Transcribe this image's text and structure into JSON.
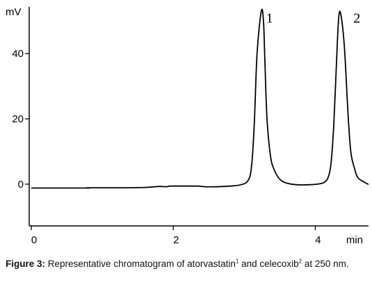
{
  "chart_data": {
    "type": "line",
    "y_unit": "mV",
    "x_unit": "min",
    "xlim": [
      -0.03,
      4.75
    ],
    "ylim": [
      -12.8,
      54.3
    ],
    "x_ticks": [
      0,
      2,
      4
    ],
    "x_tick_labels": [
      "0",
      "2",
      "4"
    ],
    "y_ticks": [
      0,
      20,
      40
    ],
    "y_tick_labels": [
      "0",
      "20",
      "40"
    ],
    "grid": false,
    "peak_labels": [
      {
        "text": "1",
        "x": 3.16,
        "y": 52.5
      },
      {
        "text": "2",
        "x": 4.39,
        "y": 52.5
      }
    ],
    "series": [
      {
        "x": [
          0,
          0.3,
          0.6,
          0.8,
          0.8,
          0.82,
          1.3,
          1.6,
          1.8,
          1.9,
          1.95,
          2.0,
          2.2,
          2.3,
          2.35,
          2.45,
          2.6,
          2.8,
          2.95,
          3.05,
          3.1,
          3.14,
          3.18,
          3.24,
          3.27,
          3.29,
          3.32,
          3.37,
          3.42,
          3.5,
          3.6,
          3.75,
          3.9,
          4.03,
          4.1,
          4.14,
          4.18,
          4.22,
          4.26,
          4.3,
          4.33,
          4.36,
          4.41,
          4.46,
          4.5,
          4.55,
          4.6,
          4.7,
          4.8,
          4.9,
          5.0,
          5.1,
          5.3
        ],
        "y": [
          -1.2,
          -1.2,
          -1.2,
          -1.2,
          -1.2,
          -1.1,
          -1.1,
          -1.0,
          -0.7,
          -0.8,
          -0.6,
          -0.6,
          -0.6,
          -0.6,
          -0.6,
          -0.8,
          -0.8,
          -0.6,
          -0.2,
          1.0,
          5.0,
          18.0,
          40.0,
          53.0,
          50.0,
          38.0,
          20.0,
          8.5,
          4.5,
          1.5,
          0.3,
          -0.2,
          -0.2,
          0,
          0.3,
          0.8,
          2.0,
          6.0,
          18.0,
          38.0,
          51.0,
          52.0,
          42.0,
          22.0,
          10.0,
          5.0,
          2.0,
          0.5,
          -0.5,
          -0.6,
          -0.8,
          -0.8,
          -0.8
        ]
      }
    ]
  },
  "caption": {
    "label": "Figure 3:",
    "text_1": " Representative chromatogram of atorvastatin",
    "sup_1": "1",
    "text_2": " and celecoxib",
    "sup_2": "2",
    "text_3": " at 250 nm."
  }
}
